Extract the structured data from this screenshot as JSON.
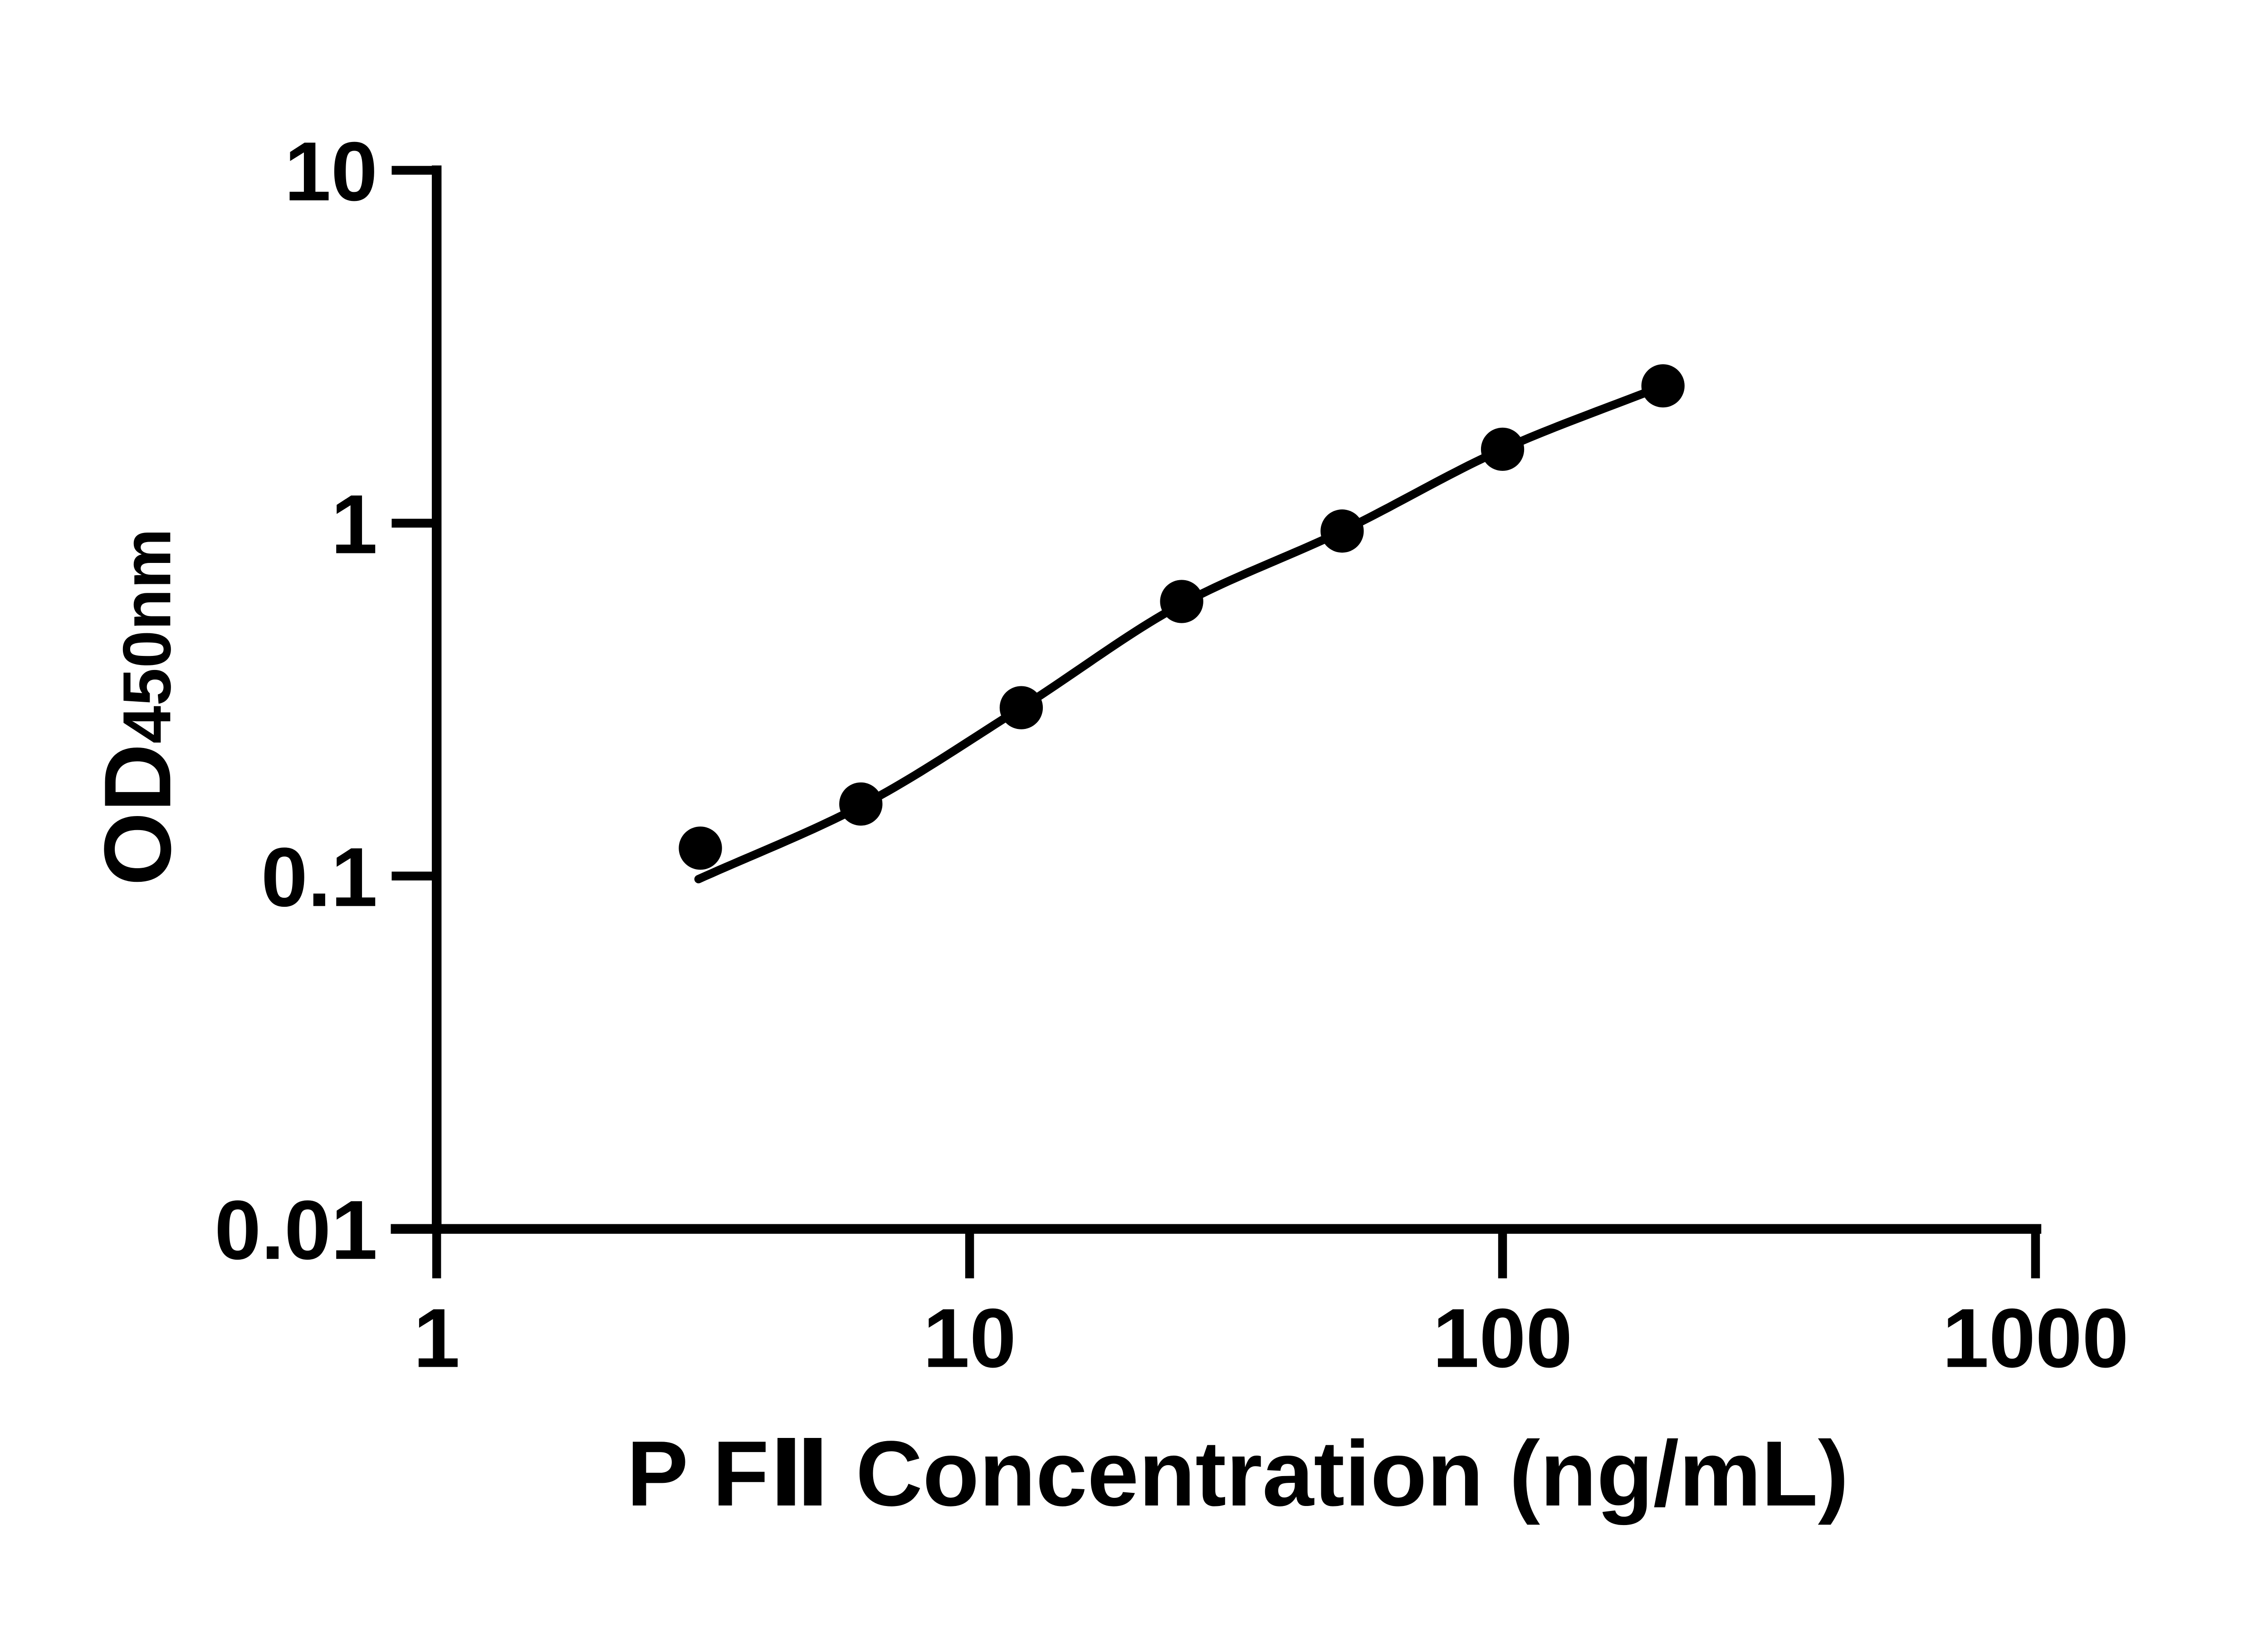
{
  "page": {
    "background_color": "#ffffff",
    "ink_color": "#000000"
  },
  "chart_data": {
    "type": "scatter",
    "title": "",
    "xlabel": "P FⅡ Concentration (ng/mL)",
    "ylabel": "OD450nm",
    "ylabel_main": "OD",
    "ylabel_sub": "450nm",
    "x_scale": "log10",
    "y_scale": "log10",
    "xlim": [
      1,
      1000
    ],
    "ylim": [
      0.01,
      10
    ],
    "grid": false,
    "legend": "none",
    "x_ticks": [
      {
        "value": 1,
        "label": "1"
      },
      {
        "value": 10,
        "label": "10"
      },
      {
        "value": 100,
        "label": "100"
      },
      {
        "value": 1000,
        "label": "1000"
      }
    ],
    "y_ticks": [
      {
        "value": 10,
        "label": "10"
      },
      {
        "value": 1,
        "label": "1"
      },
      {
        "value": 0.1,
        "label": "0.1"
      },
      {
        "value": 0.01,
        "label": "0.01"
      }
    ],
    "series": [
      {
        "name": "P FⅡ standard points",
        "marker": "filled-circle",
        "color": "#000000",
        "points": [
          {
            "x": 3.125,
            "y": 0.12
          },
          {
            "x": 6.25,
            "y": 0.16
          },
          {
            "x": 12.5,
            "y": 0.3
          },
          {
            "x": 25,
            "y": 0.6
          },
          {
            "x": 50,
            "y": 0.95
          },
          {
            "x": 100,
            "y": 1.62
          },
          {
            "x": 200,
            "y": 2.45
          }
        ]
      }
    ],
    "fit_curve": {
      "name": "fitted standard curve",
      "color": "#000000",
      "points": [
        {
          "x": 3.1,
          "y": 0.098
        },
        {
          "x": 6.25,
          "y": 0.158
        },
        {
          "x": 12.5,
          "y": 0.3
        },
        {
          "x": 25,
          "y": 0.59
        },
        {
          "x": 50,
          "y": 0.95
        },
        {
          "x": 100,
          "y": 1.62
        },
        {
          "x": 200,
          "y": 2.45
        }
      ]
    }
  }
}
